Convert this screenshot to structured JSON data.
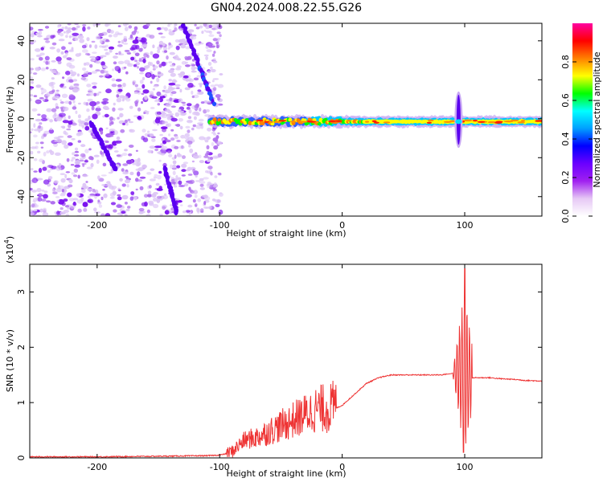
{
  "title": "GN04.2024.008.22.55.G26",
  "chart_data": [
    {
      "type": "heatmap",
      "xlabel": "Height of straight line (km)",
      "ylabel": "Frequency (Hz)",
      "xlim": [
        -255,
        163
      ],
      "ylim": [
        -50,
        49
      ],
      "xticks": [
        -200,
        -100,
        0,
        100
      ],
      "yticks": [
        -40,
        -20,
        0,
        20,
        40
      ],
      "grid": false,
      "colorbar": {
        "label": "Normalized spectral amplitude",
        "range": [
          0,
          1
        ],
        "ticks": [
          0.0,
          0.2,
          0.4,
          0.6,
          0.8
        ],
        "colors": [
          "#ffffff",
          "#e6c8f5",
          "#a020f0",
          "#6a00ff",
          "#0000ff",
          "#00a0ff",
          "#00ffff",
          "#00ff00",
          "#ffff00",
          "#ff8000",
          "#ff0000",
          "#ff00a0"
        ]
      },
      "features": {
        "noise_region_x": [
          -255,
          -108
        ],
        "signal_band_x": [
          -108,
          163
        ],
        "signal_band_y": [
          -5,
          2
        ],
        "descending_streaks": [
          {
            "x": [
              -130,
              -105
            ],
            "y": [
              49,
              8
            ]
          },
          {
            "x": [
              -205,
              -185
            ],
            "y": [
              -2,
              -26
            ]
          },
          {
            "x": [
              -145,
              -135
            ],
            "y": [
              -25,
              -48
            ]
          }
        ],
        "burst_x": 95,
        "burst_y": [
          -15,
          14
        ]
      }
    },
    {
      "type": "line",
      "xlabel": "Height of straight line (km)",
      "ylabel": "SNR (10 * v/v)",
      "ylabel_scale": "(x10",
      "ylabel_exponent": "4",
      "ylabel_close": ")",
      "xlim": [
        -255,
        163
      ],
      "ylim": [
        0,
        3.5
      ],
      "xticks": [
        -200,
        -100,
        0,
        100
      ],
      "yticks": [
        0,
        1,
        2,
        3
      ],
      "grid": false,
      "series": [
        {
          "color": "#ee3333",
          "x": [
            -255,
            -200,
            -150,
            -110,
            -100,
            -90,
            -80,
            -70,
            -60,
            -50,
            -40,
            -30,
            -20,
            -10,
            0,
            10,
            20,
            30,
            40,
            50,
            60,
            70,
            80,
            88,
            94,
            98,
            100,
            103,
            106,
            110,
            120,
            130,
            140,
            150,
            163
          ],
          "y": [
            0.02,
            0.02,
            0.03,
            0.04,
            0.05,
            0.1,
            0.3,
            0.35,
            0.45,
            0.55,
            0.65,
            0.75,
            0.85,
            0.85,
            0.95,
            1.15,
            1.35,
            1.45,
            1.5,
            1.5,
            1.5,
            1.5,
            1.5,
            1.52,
            1.55,
            1.55,
            1.55,
            1.5,
            1.45,
            1.45,
            1.45,
            1.43,
            1.42,
            1.4,
            1.39
          ],
          "noise_x": [
            -95,
            -5
          ],
          "burst_x": [
            85,
            106
          ],
          "peak": {
            "x": 100,
            "y": 3.42
          }
        }
      ]
    }
  ]
}
